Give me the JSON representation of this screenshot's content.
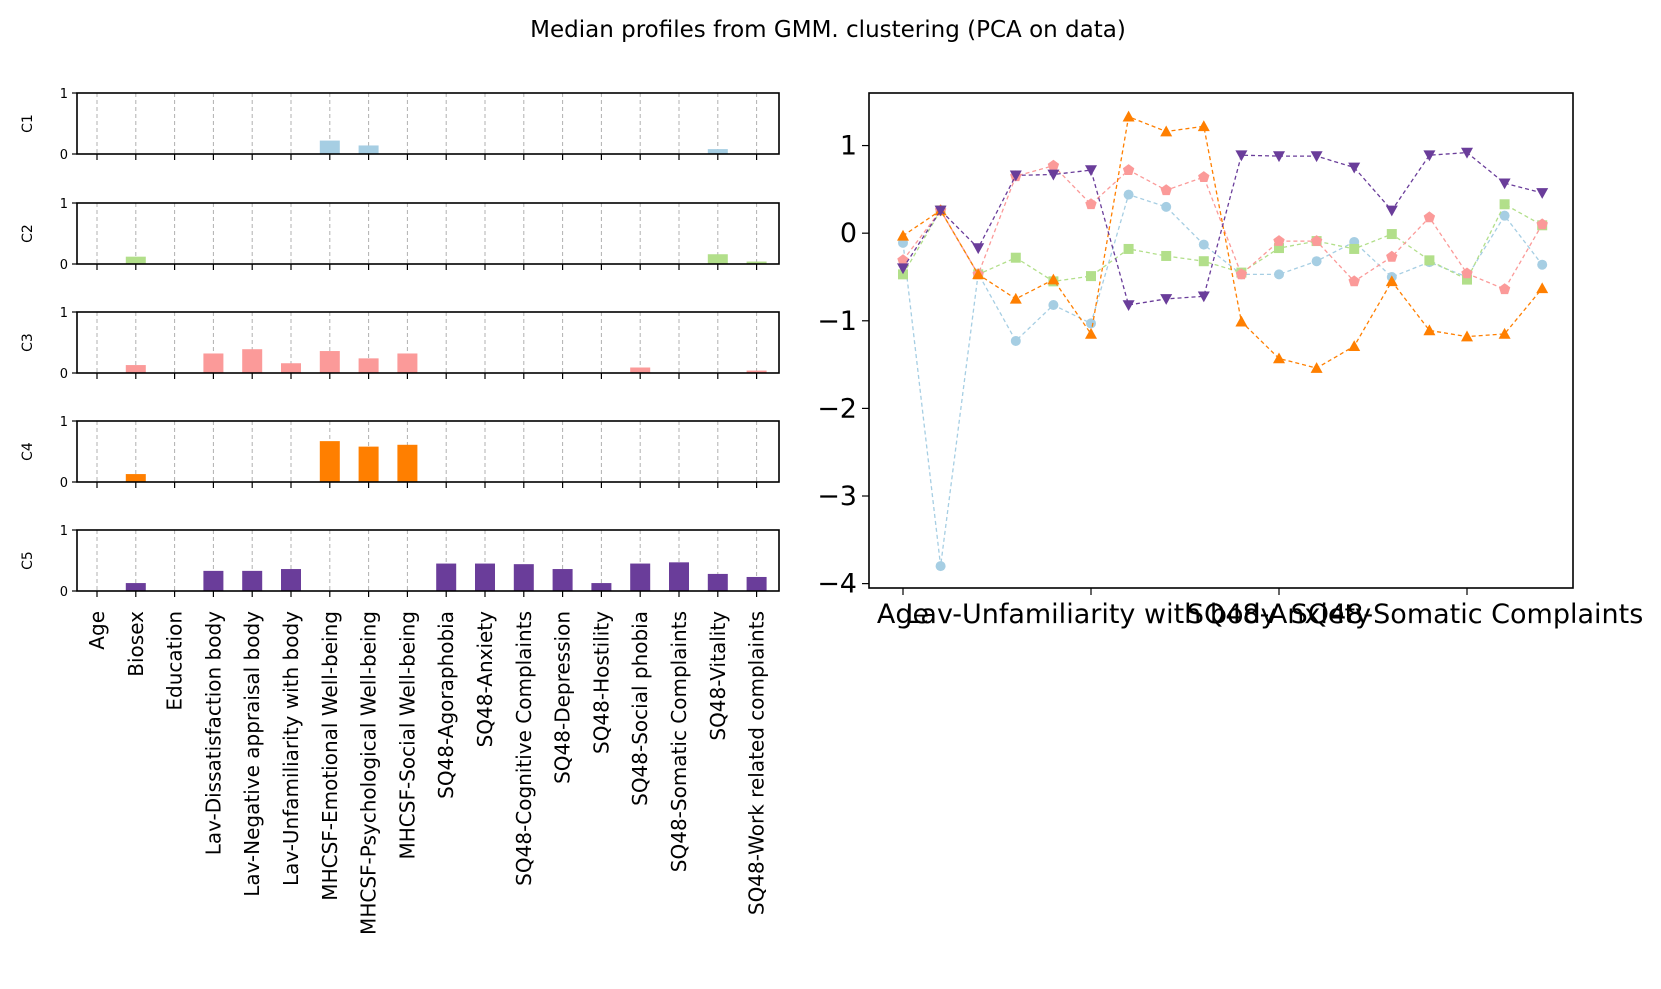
{
  "title": "Median profiles from GMM. clustering (PCA on data)",
  "variables": [
    "Age",
    "Biosex",
    "Education",
    "Lav-Dissatisfaction body",
    "Lav-Negative appraisal body",
    "Lav-Unfamiliarity with body",
    "MHCSF-Emotional Well-being",
    "MHCSF-Psychological Well-being",
    "MHCSF-Social Well-being",
    "SQ48-Agoraphobia",
    "SQ48-Anxiety",
    "SQ48-Cognitive Complaints",
    "SQ48-Depression",
    "SQ48-Hostility",
    "SQ48-Social phobia",
    "SQ48-Somatic Complaints",
    "SQ48-Vitality",
    "SQ48-Work related complaints"
  ],
  "chart_data": [
    {
      "type": "bar",
      "description": "Five stacked small-multiple bar panels, one per cluster",
      "ylim": [
        0,
        1
      ],
      "yticks": [
        "0",
        "1"
      ],
      "grid": "vertical dashed",
      "categories": [
        "Age",
        "Biosex",
        "Education",
        "Lav-Dissatisfaction body",
        "Lav-Negative appraisal body",
        "Lav-Unfamiliarity with body",
        "MHCSF-Emotional Well-being",
        "MHCSF-Psychological Well-being",
        "MHCSF-Social Well-being",
        "SQ48-Agoraphobia",
        "SQ48-Anxiety",
        "SQ48-Cognitive Complaints",
        "SQ48-Depression",
        "SQ48-Hostility",
        "SQ48-Social phobia",
        "SQ48-Somatic Complaints",
        "SQ48-Vitality",
        "SQ48-Work related complaints"
      ],
      "series": [
        {
          "name": "C1",
          "color": "#a6cee3",
          "values": [
            0,
            0,
            0,
            0,
            0,
            0,
            0.22,
            0.14,
            0,
            0,
            0,
            0,
            0,
            0,
            0,
            0,
            0.08,
            0
          ]
        },
        {
          "name": "C2",
          "color": "#b2df8a",
          "values": [
            0,
            0.12,
            0,
            0,
            0,
            0,
            0,
            0,
            0,
            0,
            0,
            0,
            0,
            0,
            0,
            0,
            0.16,
            0.04
          ]
        },
        {
          "name": "C3",
          "color": "#fb9a99",
          "values": [
            0,
            0.13,
            0,
            0.32,
            0.39,
            0.16,
            0.36,
            0.24,
            0.32,
            0,
            0,
            0,
            0,
            0,
            0.09,
            0,
            0,
            0.04
          ]
        },
        {
          "name": "C4",
          "color": "#ff7f00",
          "values": [
            0,
            0.13,
            0,
            0,
            0,
            0,
            0.67,
            0.58,
            0.61,
            0,
            0,
            0,
            0,
            0,
            0,
            0,
            0,
            0
          ]
        },
        {
          "name": "C5",
          "color": "#6a3d9a",
          "values": [
            0,
            0.13,
            0,
            0.33,
            0.33,
            0.36,
            0,
            0,
            0,
            0.45,
            0.45,
            0.44,
            0.36,
            0.13,
            0.45,
            0.47,
            0.28,
            0.23
          ]
        }
      ]
    },
    {
      "type": "line",
      "x": [
        0,
        1,
        2,
        3,
        4,
        5,
        6,
        7,
        8,
        9,
        10,
        11,
        12,
        13,
        14,
        15,
        16,
        17
      ],
      "xtick_positions": [
        0,
        5,
        10,
        15
      ],
      "xtick_labels": [
        "Age",
        "Lav-Unfamiliarity with body",
        "SQ48-Anxiety",
        "SQ48-Somatic Complaints"
      ],
      "ylim": [
        -4.05,
        1.6
      ],
      "yticks": [
        -4,
        -3,
        -2,
        -1,
        0,
        1
      ],
      "ytick_labels": [
        "−4",
        "−3",
        "−2",
        "−1",
        "0",
        "1"
      ],
      "series": [
        {
          "name": "C1",
          "color": "#a6cee3",
          "marker": "circle",
          "values": [
            -0.11,
            -3.8,
            -0.46,
            -1.23,
            -0.82,
            -1.03,
            0.44,
            0.3,
            -0.13,
            -0.47,
            -0.47,
            -0.32,
            -0.1,
            -0.5,
            -0.33,
            -0.5,
            0.2,
            -0.36
          ]
        },
        {
          "name": "C2",
          "color": "#b2df8a",
          "marker": "square",
          "values": [
            -0.47,
            0.26,
            -0.47,
            -0.28,
            -0.55,
            -0.49,
            -0.18,
            -0.26,
            -0.32,
            -0.45,
            -0.17,
            -0.09,
            -0.18,
            -0.01,
            -0.31,
            -0.53,
            0.33,
            0.09
          ]
        },
        {
          "name": "C3",
          "color": "#fb9a99",
          "marker": "pentagon",
          "values": [
            -0.31,
            0.26,
            -0.47,
            0.65,
            0.77,
            0.33,
            0.72,
            0.49,
            0.64,
            -0.47,
            -0.09,
            -0.09,
            -0.55,
            -0.27,
            0.18,
            -0.46,
            -0.64,
            0.1
          ]
        },
        {
          "name": "C4",
          "color": "#ff7f00",
          "marker": "triangle-up",
          "values": [
            -0.03,
            0.26,
            -0.47,
            -0.75,
            -0.53,
            -1.15,
            1.33,
            1.16,
            1.22,
            -1.01,
            -1.43,
            -1.54,
            -1.29,
            -0.55,
            -1.11,
            -1.18,
            -1.15,
            -0.63
          ]
        },
        {
          "name": "C5",
          "color": "#6a3d9a",
          "marker": "triangle-down",
          "values": [
            -0.4,
            0.26,
            -0.17,
            0.66,
            0.67,
            0.72,
            -0.82,
            -0.75,
            -0.72,
            0.89,
            0.88,
            0.88,
            0.75,
            0.26,
            0.89,
            0.92,
            0.57,
            0.46
          ]
        }
      ]
    }
  ]
}
